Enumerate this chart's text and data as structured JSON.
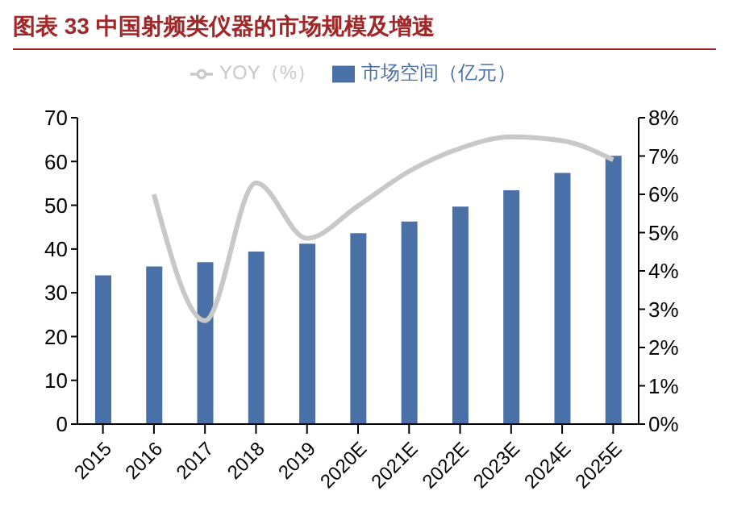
{
  "chart_data": {
    "type": "bar",
    "title": "图表 33 中国射频类仪器的市场规模及增速",
    "categories": [
      "2015",
      "2016",
      "2017",
      "2018",
      "2019",
      "2020E",
      "2021E",
      "2022E",
      "2023E",
      "2024E",
      "2025E"
    ],
    "series": [
      {
        "name": "市场空间（亿元）",
        "color": "#4a70a8",
        "values": [
          34,
          36,
          37,
          39.4,
          41.2,
          43.6,
          46.3,
          49.7,
          53.4,
          57.4,
          61.3
        ]
      },
      {
        "name": "YOY（%）",
        "type": "line",
        "axis": "y2",
        "color": "#c8c8c8",
        "values": [
          null,
          6.0,
          2.7,
          6.3,
          4.85,
          5.7,
          6.6,
          7.2,
          7.5,
          7.4,
          6.9
        ]
      }
    ],
    "ylim": [
      0,
      70
    ],
    "yticks": [
      0,
      10,
      20,
      30,
      40,
      50,
      60,
      70
    ],
    "y2lim": [
      0,
      8
    ],
    "y2ticks": [
      {
        "value": 0,
        "label": "0%"
      },
      {
        "value": 1,
        "label": "1%"
      },
      {
        "value": 2,
        "label": "2%"
      },
      {
        "value": 3,
        "label": "3%"
      },
      {
        "value": 4,
        "label": "4%"
      },
      {
        "value": 5,
        "label": "5%"
      },
      {
        "value": 6,
        "label": "6%"
      },
      {
        "value": 7,
        "label": "7%"
      },
      {
        "value": 8,
        "label": "8%"
      }
    ],
    "grid": false,
    "legend": "top",
    "marker": "none"
  }
}
